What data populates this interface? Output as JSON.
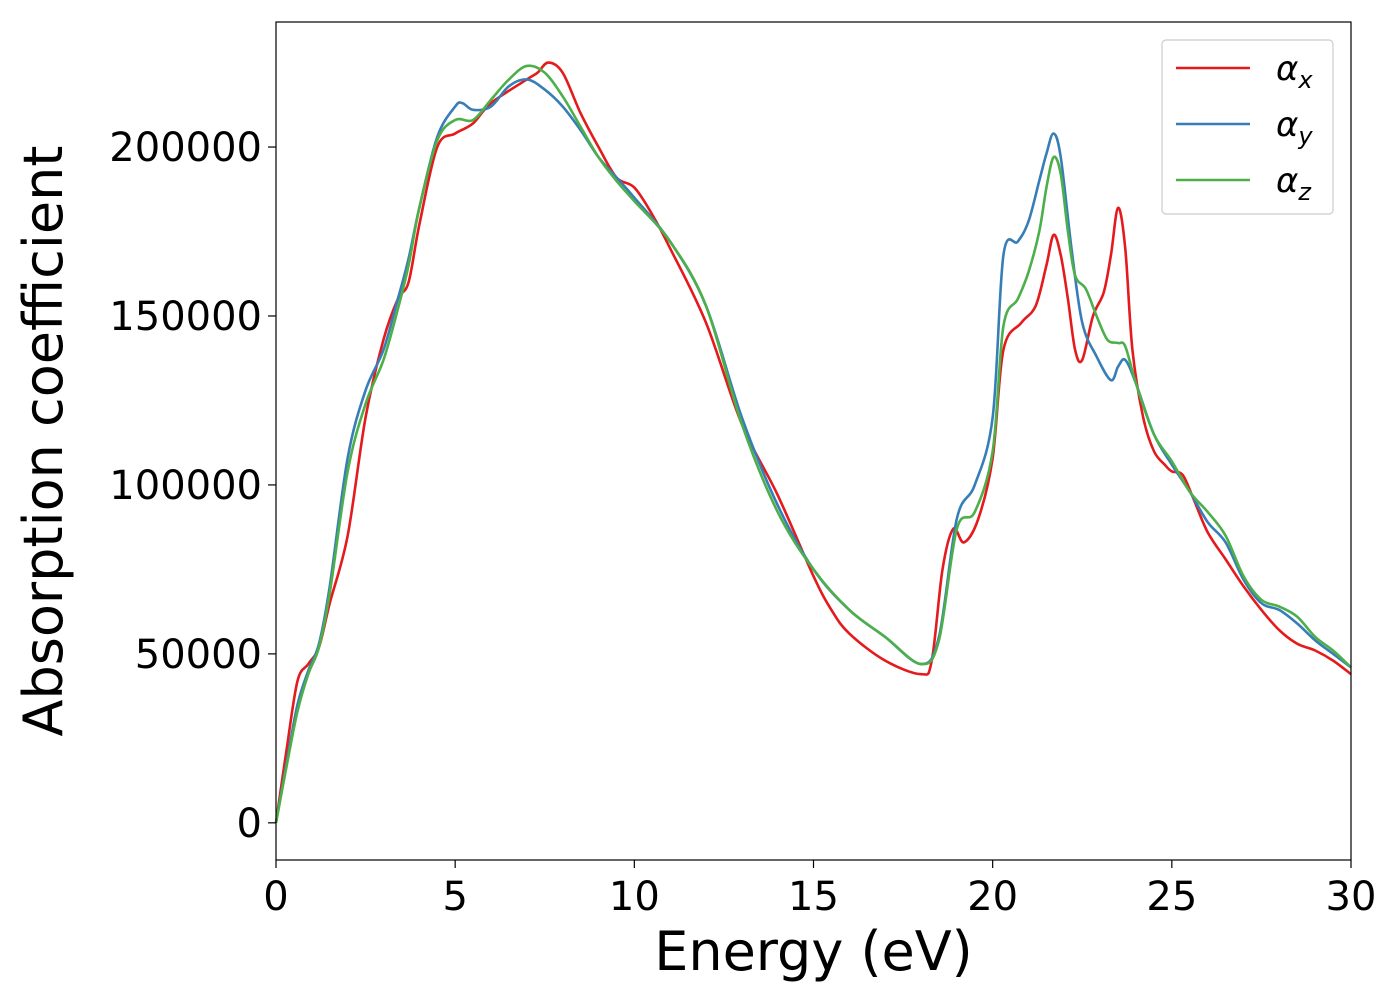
{
  "chart_data": {
    "type": "line",
    "title": "",
    "xlabel": "Energy (eV)",
    "ylabel": "Absorption coefficient",
    "xlim": [
      0,
      30
    ],
    "ylim": [
      -11000,
      237000
    ],
    "xticks": [
      0,
      5,
      10,
      15,
      20,
      25,
      30
    ],
    "yticks": [
      0,
      50000,
      100000,
      150000,
      200000
    ],
    "xtick_labels": [
      "0",
      "5",
      "10",
      "15",
      "20",
      "25",
      "30"
    ],
    "ytick_labels": [
      "0",
      "50000",
      "100000",
      "150000",
      "200000"
    ],
    "grid": false,
    "legend_position": "top-right",
    "series": [
      {
        "name": "α_x",
        "label_base": "α",
        "label_sub": "x",
        "color": "#e41a1c",
        "x": [
          0,
          0.3,
          0.6,
          0.9,
          1.2,
          1.5,
          2.0,
          2.5,
          3.0,
          3.4,
          3.7,
          4.0,
          4.5,
          5.0,
          5.5,
          6.0,
          7.0,
          7.3,
          7.6,
          8.0,
          8.5,
          9.0,
          9.5,
          10.0,
          10.5,
          11.0,
          12.0,
          13.0,
          14.0,
          15.0,
          15.5,
          16.0,
          17.0,
          18.0,
          18.3,
          18.6,
          18.9,
          19.2,
          19.6,
          20.0,
          20.3,
          20.8,
          21.2,
          21.5,
          21.7,
          21.9,
          22.1,
          22.3,
          22.5,
          22.8,
          23.1,
          23.3,
          23.5,
          23.7,
          23.9,
          24.2,
          24.5,
          24.8,
          25.0,
          25.3,
          25.6,
          26.0,
          26.5,
          27.0,
          27.5,
          28.0,
          28.5,
          29.0,
          29.5,
          30.0
        ],
        "y": [
          0,
          22000,
          42000,
          47000,
          52000,
          65000,
          85000,
          120000,
          143000,
          155000,
          160000,
          177000,
          200000,
          204000,
          207000,
          213000,
          220000,
          222000,
          225000,
          222000,
          210000,
          200000,
          191000,
          188000,
          180000,
          170000,
          148000,
          118000,
          97000,
          73000,
          63000,
          56000,
          48000,
          44000,
          48000,
          75000,
          87000,
          83000,
          90000,
          108000,
          140000,
          148000,
          153000,
          165000,
          174000,
          168000,
          155000,
          140000,
          137000,
          150000,
          157000,
          168000,
          182000,
          170000,
          140000,
          120000,
          110000,
          106000,
          104000,
          103000,
          96000,
          86000,
          78000,
          70000,
          63000,
          57000,
          53000,
          51000,
          48000,
          44000
        ]
      },
      {
        "name": "α_y",
        "label_base": "α",
        "label_sub": "y",
        "color": "#377eb8",
        "x": [
          0,
          0.3,
          0.6,
          0.9,
          1.2,
          1.5,
          2.0,
          2.5,
          3.0,
          3.4,
          3.7,
          4.0,
          4.5,
          5.0,
          5.2,
          5.5,
          6.0,
          6.5,
          7.0,
          7.5,
          8.0,
          8.5,
          9.0,
          9.5,
          10.0,
          11.0,
          12.0,
          13.0,
          14.0,
          15.0,
          16.0,
          17.0,
          18.0,
          18.5,
          19.0,
          19.5,
          20.0,
          20.3,
          20.7,
          21.0,
          21.3,
          21.5,
          21.7,
          21.9,
          22.2,
          22.5,
          22.9,
          23.3,
          23.5,
          23.7,
          24.0,
          24.5,
          25.0,
          25.5,
          26.0,
          26.5,
          27.0,
          27.5,
          28.0,
          28.5,
          29.0,
          29.5,
          30.0
        ],
        "y": [
          0,
          18000,
          35000,
          45000,
          53000,
          70000,
          108000,
          128000,
          140000,
          155000,
          167000,
          182000,
          203000,
          212000,
          213000,
          211000,
          212000,
          218000,
          220000,
          217000,
          212000,
          205000,
          197000,
          191000,
          185000,
          172000,
          153000,
          120000,
          94000,
          75000,
          63000,
          55000,
          47000,
          55000,
          90000,
          100000,
          120000,
          168000,
          172000,
          178000,
          190000,
          198000,
          204000,
          197000,
          170000,
          148000,
          138000,
          131000,
          135000,
          137000,
          130000,
          115000,
          106000,
          98000,
          89000,
          83000,
          72000,
          65000,
          63000,
          59000,
          54000,
          50000,
          46000
        ]
      },
      {
        "name": "α_z",
        "label_base": "α",
        "label_sub": "z",
        "color": "#4daf4a",
        "x": [
          0,
          0.3,
          0.6,
          0.9,
          1.2,
          1.5,
          2.0,
          2.5,
          3.0,
          3.4,
          3.7,
          4.0,
          4.5,
          5.0,
          5.5,
          6.0,
          6.5,
          7.0,
          7.5,
          8.0,
          8.5,
          9.0,
          9.5,
          10.0,
          11.0,
          12.0,
          13.0,
          14.0,
          15.0,
          16.0,
          17.0,
          18.0,
          18.5,
          19.0,
          19.5,
          20.0,
          20.3,
          20.7,
          21.0,
          21.3,
          21.5,
          21.7,
          21.9,
          22.1,
          22.3,
          22.6,
          22.9,
          23.2,
          23.5,
          23.7,
          24.0,
          24.5,
          25.0,
          25.5,
          26.0,
          26.5,
          27.0,
          27.5,
          28.0,
          28.5,
          29.0,
          29.5,
          30.0
        ],
        "y": [
          0,
          17000,
          33000,
          44000,
          52000,
          68000,
          104000,
          124000,
          137000,
          152000,
          165000,
          182000,
          202000,
          208000,
          208000,
          214000,
          220000,
          224000,
          222000,
          215000,
          206000,
          197000,
          190000,
          184000,
          172000,
          153000,
          118000,
          92000,
          75000,
          63000,
          55000,
          47000,
          54000,
          87000,
          92000,
          110000,
          147000,
          155000,
          163000,
          175000,
          188000,
          197000,
          192000,
          175000,
          162000,
          158000,
          150000,
          143000,
          142000,
          141000,
          130000,
          115000,
          107000,
          98000,
          92000,
          85000,
          73000,
          66000,
          64000,
          61000,
          55000,
          51000,
          46000
        ]
      }
    ]
  }
}
